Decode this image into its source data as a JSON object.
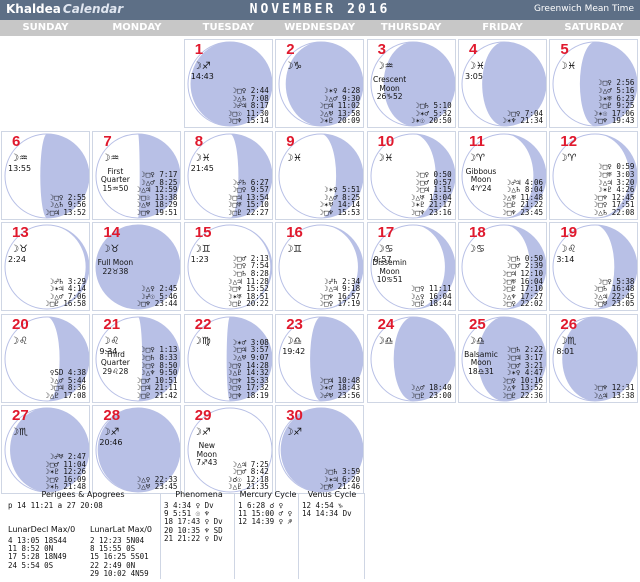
{
  "header": {
    "brand_main": "Khaldea",
    "brand_sub": "Calendar",
    "title": "NOVEMBER 2016",
    "timezone": "Greenwich Mean Time",
    "bg_color": "#5d6f86"
  },
  "weekdays": [
    "SUNDAY",
    "MONDAY",
    "TUESDAY",
    "WEDNESDAY",
    "THURSDAY",
    "FRIDAY",
    "SATURDAY"
  ],
  "moon_color": "#b8c0e6",
  "days": [
    {
      "day": "1",
      "sign": "☽♐",
      "time": "14:43",
      "phase": "",
      "lit": 0.03,
      "aspects": [
        "☽□♀ 2:44",
        "☽△♄ 7:08",
        "☽☍♃ 8:17",
        "☽□☉ 11:30",
        "☽□♆ 15:14"
      ]
    },
    {
      "day": "2",
      "sign": "☽♑",
      "time": "",
      "phase": "",
      "lit": 0.08,
      "aspects": [
        "☽✶♀ 4:28",
        "☽△♂ 9:30",
        "☽□♃ 11:02",
        "☽△♅ 13:58",
        "☽✶♇ 20:09"
      ]
    },
    {
      "day": "3",
      "sign": "☽♒",
      "time": "",
      "phase": "Crescent Moon 26♑52",
      "lit": 0.15,
      "aspects": [
        "☽□♄ 5:10",
        "☽✶♂ 5:32",
        "☽✶☉ 20:50"
      ]
    },
    {
      "day": "4",
      "sign": "☽♓",
      "time": "3:05",
      "phase": "",
      "lit": 0.24,
      "aspects": [
        "☽□♀ 7:04",
        "☽✶♆ 21:34"
      ]
    },
    {
      "day": "5",
      "sign": "☽♓",
      "time": "",
      "phase": "",
      "lit": 0.32,
      "aspects": [
        "☽□♀ 2:56",
        "☽△♂ 5:16",
        "☽✶♅ 6:23",
        "☽□♇ 9:25",
        "☽✶☉ 17:06",
        "☽□♆ 19:43"
      ]
    },
    {
      "day": "6",
      "sign": "☽♒",
      "time": "13:55",
      "phase": "",
      "lit": 0.42,
      "aspects": [
        "☽□♀ 2:55",
        "☽△♄ 9:56",
        "☽□♃ 13:52"
      ]
    },
    {
      "day": "7",
      "sign": "☽♒",
      "time": "",
      "phase": "First Quarter 15♒50",
      "lit": 0.52,
      "aspects": [
        "☽□♀ 7:17",
        "☽△♂ 8:25",
        "☽△♃ 12:59",
        "☽□☉ 13:38",
        "☽△♅ 18:29",
        "☽□♆ 19:51"
      ]
    },
    {
      "day": "8",
      "sign": "☽♓",
      "time": "21:45",
      "phase": "",
      "lit": 0.6,
      "aspects": [
        "☽☍♄ 6:27",
        "☽□♀ 9:57",
        "☽□♃ 13:54",
        "☽□♅ 15:10",
        "☽□♇ 22:27"
      ]
    },
    {
      "day": "9",
      "sign": "☽♓",
      "time": "",
      "phase": "",
      "lit": 0.68,
      "aspects": [
        "☽✶♀ 5:51",
        "☽△♂ 8:25",
        "☽✶♅ 14:14",
        "☽□♆ 15:53"
      ]
    },
    {
      "day": "10",
      "sign": "☽♓",
      "time": "",
      "phase": "",
      "lit": 0.77,
      "aspects": [
        "☽□♀ 0:50",
        "☽□♂ 0:57",
        "☽□♃ 1:15",
        "☽△♅ 13:04",
        "☽✶♇ 21:17",
        "☽□♆ 23:16"
      ]
    },
    {
      "day": "11",
      "sign": "☽♈",
      "time": "",
      "phase": "Gibbous Moon 4♈24",
      "lit": 0.85,
      "aspects": [
        "☽☍♃ 4:06",
        "☽△♄ 8:04",
        "☽△♅ 11:48",
        "☽□♇ 21:22",
        "☽□♆ 23:45"
      ]
    },
    {
      "day": "12",
      "sign": "☽♈",
      "time": "",
      "phase": "",
      "lit": 0.91,
      "aspects": [
        "☽□♀ 0:59",
        "☽□♅ 3:03",
        "☽△♃ 3:20",
        "☽✶♇ 4:26",
        "☽□♆ 12:45",
        "☽□♀ 17:51",
        "☽△♄ 22:08"
      ]
    },
    {
      "day": "13",
      "sign": "☽♉",
      "time": "2:24",
      "phase": "",
      "lit": 0.96,
      "aspects": [
        "☽☍♄ 3:29",
        "☽✶♃ 4:14",
        "☽△♂ 7:06",
        "☽□♇ 16:58"
      ]
    },
    {
      "day": "14",
      "sign": "☽♉",
      "time": "",
      "phase": "Full Moon 22♉38",
      "lit": 1.0,
      "aspects": [
        "☽△♀ 2:45",
        "☽☍☉ 5:46",
        "☽□♆ 23:44"
      ]
    },
    {
      "day": "15",
      "sign": "☽♊",
      "time": "1:23",
      "phase": "",
      "lit": 0.98,
      "aspects": [
        "☽□♂ 2:13",
        "☽□♀ 7:54",
        "☽□♄ 8:28",
        "☽△♃ 11:28",
        "☽□♆ 15:52",
        "☽✶♅ 18:51",
        "☽□♇ 20:22"
      ]
    },
    {
      "day": "16",
      "sign": "☽♊",
      "time": "",
      "phase": "",
      "lit": 0.94,
      "aspects": [
        "☽☍♄ 2:34",
        "☽△♃ 9:18",
        "☽□♆ 16:57",
        "☽□♀ 17:19"
      ]
    },
    {
      "day": "17",
      "sign": "☽♋",
      "time": "0:57",
      "phase": "Dissemin Moon 10♋51",
      "lit": 0.88,
      "aspects": [
        "☽□♀ 11:11",
        "☽△♀ 16:04",
        "☽□♇ 18:44"
      ]
    },
    {
      "day": "18",
      "sign": "☽♋",
      "time": "",
      "phase": "",
      "lit": 0.81,
      "aspects": [
        "☽□♄ 0:50",
        "☽□♂ 2:39",
        "☽□♃ 12:10",
        "☽□♅ 16:04",
        "☽□♇ 17:10",
        "☽△♆ 17:27",
        "☽□♀ 22:02"
      ]
    },
    {
      "day": "19",
      "sign": "☽♌",
      "time": "3:14",
      "phase": "",
      "lit": 0.73,
      "aspects": [
        "☽□♀ 5:38",
        "☽□♄ 16:48",
        "☽△♃ 22:45",
        "☽□♅ 23:05"
      ]
    },
    {
      "day": "20",
      "sign": "☽♌",
      "time": "",
      "phase": "",
      "lit": 0.65,
      "aspects": [
        "♀SD 4:38",
        "☽△♂ 5:44",
        "☽□♃ 8:36",
        "☽△♇ 17:08"
      ]
    },
    {
      "day": "21",
      "sign": "☽♌",
      "time": "9:34",
      "phase": "Third Quarter 29♌28",
      "lit": 0.55,
      "aspects": [
        "☽□♀ 1:13",
        "☽□♄ 8:33",
        "☽□♀ 8:50",
        "☽△♆ 9:50",
        "☽□♂ 10:51",
        "☽□♃ 21:11",
        "☽□♇ 21:42"
      ]
    },
    {
      "day": "22",
      "sign": "☽♍",
      "time": "",
      "phase": "",
      "lit": 0.46,
      "aspects": [
        "☽✶♂ 3:08",
        "☽□♃ 3:57",
        "☽△♅ 9:07",
        "☽□♀ 14:28",
        "☽△♇ 14:32",
        "☽□♆ 15:33",
        "☽□♀ 17:32",
        "☽□♆ 18:19"
      ]
    },
    {
      "day": "23",
      "sign": "☽♎",
      "time": "19:42",
      "phase": "",
      "lit": 0.37,
      "aspects": [
        "☽□♃ 10:48",
        "☽✶♂ 18:43",
        "☽☍♅ 23:56"
      ]
    },
    {
      "day": "24",
      "sign": "☽♎",
      "time": "",
      "phase": "",
      "lit": 0.27,
      "aspects": [
        "☽△♂ 18:40",
        "☽□♇ 23:00"
      ]
    },
    {
      "day": "25",
      "sign": "☽♎",
      "time": "",
      "phase": "Balsamic Moon 18♎31",
      "lit": 0.19,
      "aspects": [
        "☽□♄ 2:22",
        "☽□♃ 3:17",
        "☽□♂ 3:21",
        "☽✶♀ 4:47",
        "☽□♀ 10:16",
        "☽△♆ 13:52",
        "☽□♇ 22:36"
      ]
    },
    {
      "day": "26",
      "sign": "☽♏",
      "time": "8:01",
      "phase": "",
      "lit": 0.11,
      "aspects": [
        "☽□♆ 12:31",
        "☽△♃ 13:38"
      ]
    },
    {
      "day": "27",
      "sign": "☽♏",
      "time": "",
      "phase": "",
      "lit": 0.06,
      "aspects": [
        "☽☍♅ 2:47",
        "☽□♂ 11:04",
        "☽✶♇ 12:26",
        "☽□♀ 16:09",
        "☽✶♄ 21:48"
      ]
    },
    {
      "day": "28",
      "sign": "☽♐",
      "time": "20:46",
      "phase": "",
      "lit": 0.02,
      "aspects": [
        "☽△♀ 22:33",
        "☽△♅ 23:45"
      ]
    },
    {
      "day": "29",
      "sign": "☽♐",
      "time": "",
      "phase": "New Moon 7♐43",
      "lit": 0.0,
      "aspects": [
        "☽△♃ 7:25",
        "☽□♂ 8:42",
        "☽☌☉ 12:18",
        "☽△♇ 21:35"
      ]
    },
    {
      "day": "30",
      "sign": "☽♐",
      "time": "",
      "phase": "",
      "lit": 0.02,
      "aspects": [
        "☽□♄ 3:59",
        "☽✶♃ 6:20",
        "☽□♅ 21:46"
      ]
    }
  ],
  "footer": {
    "perigees": {
      "title": "Perigees & Apogrees",
      "rows": [
        "p 14 11:21    a 27 20:08"
      ]
    },
    "lunar_decl": {
      "title": "LunarDecl Max/0",
      "rows": [
        "4 13:05 18S44",
        "11 8:52 0N",
        "17 5:28 18N49",
        "24 5:54 0S"
      ]
    },
    "lunar_lat": {
      "title": "LunarLat Max/0",
      "rows": [
        "2 12:23 5N04",
        "8 15:55 0S",
        "15 16:25 5S01",
        "22 2:49 0N",
        "29 10:02 4N59"
      ]
    },
    "phenomena": {
      "title": "Phenomena",
      "rows": [
        "3 4:34 ♀ Dv",
        "9 5:51 ☉ ♆",
        "18 17:43 ♀ Dv",
        "20 10:35 ♆ SD",
        "21 21:22 ♀ Dv"
      ]
    },
    "mercury": {
      "title": "Mercury Cycle",
      "rows": [
        "1 6:28 ☌ ♀",
        "11 15:00 ♂ ♀",
        "12 14:39 ♀ ♐"
      ]
    },
    "venus": {
      "title": "Venus Cycle",
      "rows": [
        "12 4:54 ♑",
        "14 14:34 Dv"
      ]
    }
  }
}
